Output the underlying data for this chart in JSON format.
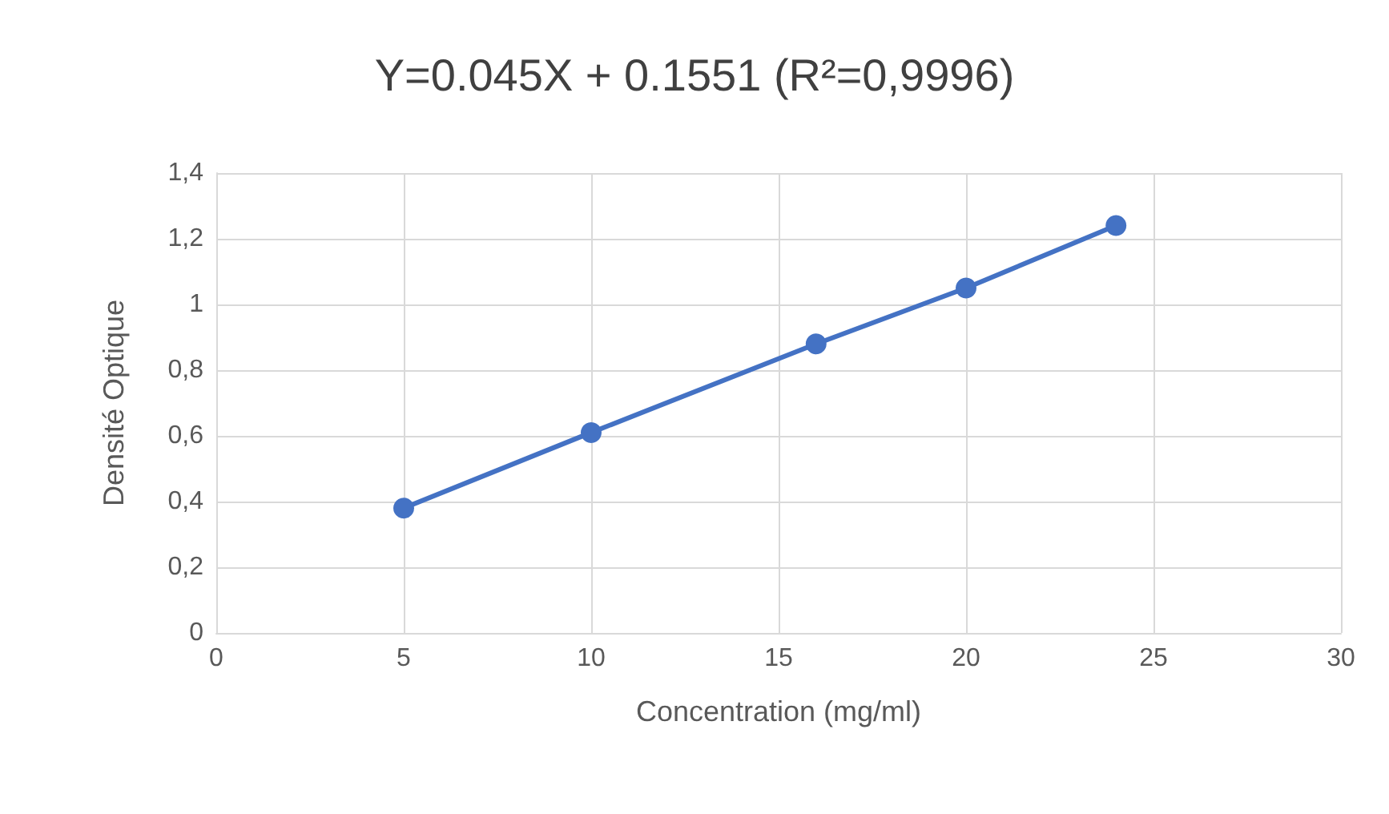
{
  "chart_data": {
    "type": "line",
    "title": "Y=0.045X + 0.1551 (R²=0,9996)",
    "xlabel": "Concentration (mg/ml)",
    "ylabel": "Densité Optique",
    "x": [
      5,
      10,
      16,
      20,
      24
    ],
    "series": [
      {
        "color": "#4472c4",
        "values": [
          0.38,
          0.61,
          0.88,
          1.05,
          1.24
        ]
      }
    ],
    "xlim": [
      0,
      30
    ],
    "xticks": [
      0,
      5,
      10,
      15,
      20,
      25,
      30
    ],
    "ylim": [
      0,
      1.4
    ],
    "yticks": [
      {
        "value": 0,
        "label": "0"
      },
      {
        "value": 0.2,
        "label": "0,2"
      },
      {
        "value": 0.4,
        "label": "0,4"
      },
      {
        "value": 0.6,
        "label": "0,6"
      },
      {
        "value": 0.8,
        "label": "0,8"
      },
      {
        "value": 1,
        "label": "1"
      },
      {
        "value": 1.2,
        "label": "1,2"
      },
      {
        "value": 1.4,
        "label": "1,4"
      }
    ],
    "grid": true,
    "marker": "circle",
    "line_style": "solid"
  }
}
